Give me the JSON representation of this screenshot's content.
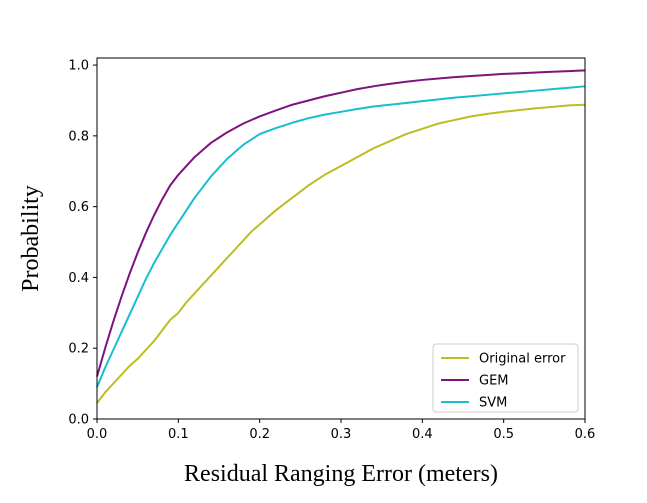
{
  "chart_data": {
    "type": "line",
    "title": "",
    "xlabel": "Residual Ranging Error (meters)",
    "ylabel": "Probability",
    "xlim": [
      0.0,
      0.6
    ],
    "ylim": [
      0.0,
      1.02
    ],
    "xticks": [
      0.0,
      0.1,
      0.2,
      0.3,
      0.4,
      0.5,
      0.6
    ],
    "xtick_labels": [
      "0.0",
      "0.1",
      "0.2",
      "0.3",
      "0.4",
      "0.5",
      "0.6"
    ],
    "yticks": [
      0.0,
      0.2,
      0.4,
      0.6,
      0.8,
      1.0
    ],
    "ytick_labels": [
      "0.0",
      "0.2",
      "0.4",
      "0.6",
      "0.8",
      "1.0"
    ],
    "grid": false,
    "legend_position": "bottom-right",
    "series": [
      {
        "name": "Original error",
        "color": "#bcbd22",
        "x": [
          0.0,
          0.01,
          0.02,
          0.03,
          0.04,
          0.05,
          0.06,
          0.07,
          0.08,
          0.09,
          0.1,
          0.11,
          0.12,
          0.13,
          0.14,
          0.15,
          0.16,
          0.17,
          0.18,
          0.19,
          0.2,
          0.22,
          0.24,
          0.26,
          0.28,
          0.3,
          0.32,
          0.34,
          0.36,
          0.38,
          0.4,
          0.42,
          0.44,
          0.46,
          0.48,
          0.5,
          0.52,
          0.54,
          0.56,
          0.58,
          0.6
        ],
        "y": [
          0.045,
          0.075,
          0.1,
          0.125,
          0.15,
          0.17,
          0.195,
          0.22,
          0.25,
          0.28,
          0.3,
          0.33,
          0.355,
          0.38,
          0.405,
          0.43,
          0.455,
          0.48,
          0.505,
          0.53,
          0.55,
          0.59,
          0.625,
          0.66,
          0.69,
          0.715,
          0.74,
          0.765,
          0.785,
          0.805,
          0.82,
          0.835,
          0.845,
          0.855,
          0.862,
          0.868,
          0.873,
          0.878,
          0.882,
          0.886,
          0.888
        ]
      },
      {
        "name": "GEM",
        "color": "#7f127f",
        "x": [
          0.0,
          0.01,
          0.02,
          0.03,
          0.04,
          0.05,
          0.06,
          0.07,
          0.08,
          0.09,
          0.1,
          0.11,
          0.12,
          0.13,
          0.14,
          0.15,
          0.16,
          0.18,
          0.2,
          0.22,
          0.24,
          0.26,
          0.28,
          0.3,
          0.32,
          0.34,
          0.36,
          0.38,
          0.4,
          0.42,
          0.44,
          0.46,
          0.48,
          0.5,
          0.52,
          0.54,
          0.56,
          0.58,
          0.6
        ],
        "y": [
          0.12,
          0.2,
          0.275,
          0.345,
          0.41,
          0.47,
          0.525,
          0.575,
          0.62,
          0.66,
          0.69,
          0.715,
          0.74,
          0.76,
          0.78,
          0.795,
          0.81,
          0.835,
          0.855,
          0.872,
          0.888,
          0.9,
          0.912,
          0.922,
          0.932,
          0.94,
          0.947,
          0.953,
          0.958,
          0.962,
          0.966,
          0.969,
          0.972,
          0.975,
          0.977,
          0.979,
          0.981,
          0.983,
          0.985
        ]
      },
      {
        "name": "SVM",
        "color": "#17becf",
        "x": [
          0.0,
          0.01,
          0.02,
          0.03,
          0.04,
          0.05,
          0.06,
          0.07,
          0.08,
          0.09,
          0.1,
          0.11,
          0.12,
          0.13,
          0.14,
          0.15,
          0.16,
          0.17,
          0.18,
          0.19,
          0.2,
          0.22,
          0.24,
          0.26,
          0.28,
          0.3,
          0.32,
          0.34,
          0.36,
          0.38,
          0.4,
          0.42,
          0.44,
          0.46,
          0.48,
          0.5,
          0.52,
          0.54,
          0.56,
          0.58,
          0.6
        ],
        "y": [
          0.09,
          0.145,
          0.195,
          0.245,
          0.295,
          0.345,
          0.395,
          0.44,
          0.48,
          0.52,
          0.555,
          0.59,
          0.625,
          0.655,
          0.685,
          0.71,
          0.735,
          0.755,
          0.775,
          0.79,
          0.805,
          0.822,
          0.837,
          0.85,
          0.86,
          0.868,
          0.876,
          0.883,
          0.888,
          0.893,
          0.898,
          0.903,
          0.908,
          0.912,
          0.916,
          0.92,
          0.924,
          0.928,
          0.932,
          0.936,
          0.94
        ]
      }
    ]
  }
}
